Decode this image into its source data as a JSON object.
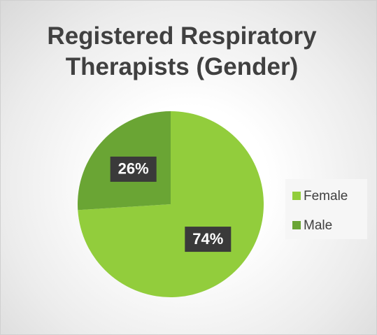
{
  "chart_data": {
    "type": "pie",
    "title": "Registered Respiratory Therapists (Gender)",
    "categories": [
      "Female",
      "Male"
    ],
    "values": [
      74,
      26
    ],
    "value_labels": [
      "74%",
      "26%"
    ],
    "colors": [
      "#92cd3c",
      "#6aa534"
    ],
    "legend": "right"
  }
}
